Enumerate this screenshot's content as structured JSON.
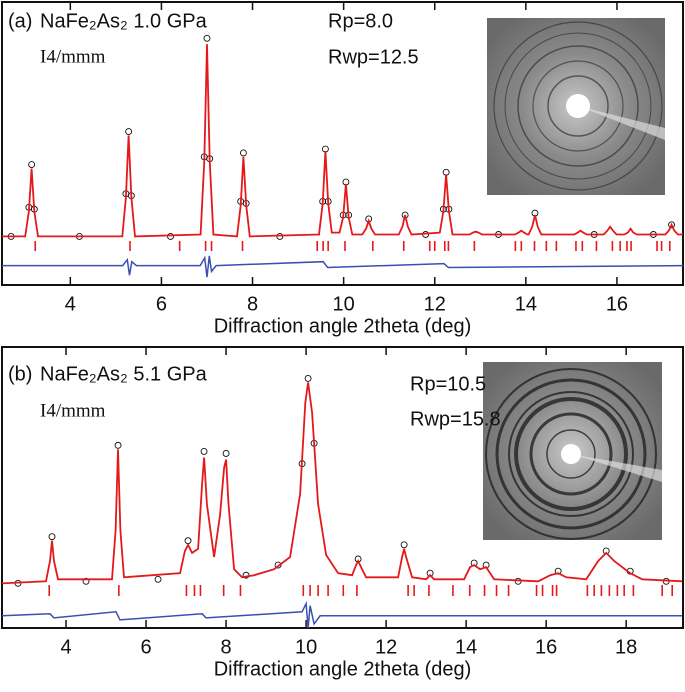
{
  "chart_data": [
    {
      "type": "line",
      "label": "(a)",
      "title": "NaFe₂As₂ 1.0 GPa",
      "space_group": "I4/mmm",
      "annotations": [
        "Rp=8.0",
        "Rwp=12.5"
      ],
      "x_label": "Diffraction angle 2theta (deg)",
      "xlim": [
        2.5,
        17.45
      ],
      "xticks": [
        4,
        6,
        8,
        10,
        12,
        14,
        16
      ],
      "ylim": [
        -24,
        115
      ],
      "calculated": {
        "color": "#e4191c",
        "x": [
          2.5,
          3.01,
          3.09,
          3.15,
          3.21,
          3.29,
          5.14,
          5.22,
          5.28,
          5.34,
          5.42,
          6.86,
          6.94,
          7.0,
          7.06,
          7.14,
          7.66,
          7.74,
          7.8,
          7.86,
          7.94,
          9.46,
          9.54,
          9.6,
          9.66,
          9.74,
          9.91,
          9.99,
          10.05,
          10.11,
          10.19,
          10.41,
          10.49,
          10.55,
          10.61,
          10.69,
          11.21,
          11.29,
          11.35,
          11.41,
          11.49,
          12.11,
          12.19,
          12.25,
          12.31,
          12.39,
          12.76,
          12.84,
          12.9,
          12.96,
          13.04,
          13.76,
          13.84,
          13.9,
          13.96,
          14.04,
          14.06,
          14.14,
          14.2,
          14.26,
          14.34,
          15.06,
          15.14,
          15.2,
          15.26,
          15.34,
          15.71,
          15.79,
          15.85,
          15.91,
          15.99,
          16.16,
          16.24,
          16.3,
          16.36,
          16.44,
          17.06,
          17.14,
          17.2,
          17.26,
          17.34,
          17.45
        ],
        "values": [
          1,
          1,
          14,
          36,
          14,
          1,
          1,
          21,
          53,
          21,
          1,
          2,
          40,
          100,
          40,
          2,
          1,
          17,
          42,
          17,
          1,
          2,
          18,
          45,
          18,
          3,
          3,
          11,
          28,
          11,
          2,
          2,
          5,
          9,
          5,
          2,
          2,
          6,
          12,
          6,
          2,
          3,
          14,
          33,
          14,
          2,
          2,
          3,
          3.5,
          3,
          2,
          2,
          3,
          4,
          3,
          2,
          2,
          6,
          12,
          6,
          2,
          2,
          3,
          4,
          3,
          2,
          2,
          4,
          6,
          4,
          2,
          2,
          3,
          5,
          3,
          2,
          2,
          4,
          7,
          4,
          2,
          2
        ]
      },
      "observed": {
        "color": "#111111",
        "x": [
          2.7,
          3.09,
          3.15,
          3.21,
          4.2,
          5.22,
          5.28,
          5.34,
          6.2,
          6.94,
          7.0,
          7.06,
          7.74,
          7.8,
          7.86,
          8.6,
          9.54,
          9.6,
          9.66,
          9.99,
          10.05,
          10.11,
          10.55,
          11.35,
          11.8,
          12.19,
          12.25,
          12.31,
          13.4,
          14.2,
          15.5,
          16.8,
          17.2
        ],
        "values": [
          1,
          16,
          38,
          15,
          1,
          23,
          55,
          22,
          1,
          42,
          103,
          41,
          19,
          44,
          18,
          1,
          19,
          46,
          19,
          12,
          29,
          12,
          10,
          12,
          2,
          15,
          34,
          15,
          2,
          13,
          2,
          2,
          7
        ]
      },
      "difference": {
        "color": "#3a4fb0",
        "x": [
          2.5,
          5.15,
          5.25,
          5.3,
          5.35,
          5.45,
          6.85,
          6.95,
          7.0,
          7.05,
          7.1,
          7.2,
          9.55,
          9.65,
          12.2,
          12.3,
          17.45
        ],
        "values": [
          -14,
          -14,
          -11,
          -19,
          -12,
          -14,
          -14,
          -10,
          -20,
          -9,
          -17,
          -14,
          -12,
          -15,
          -13,
          -15,
          -14
        ]
      },
      "reflections": {
        "color": "#e4191c",
        "x": [
          3.23,
          5.31,
          6.4,
          6.97,
          7.1,
          7.78,
          9.42,
          9.55,
          9.66,
          10.03,
          10.64,
          11.32,
          11.89,
          12.0,
          12.22,
          12.3,
          12.87,
          13.77,
          13.9,
          14.19,
          14.45,
          14.67,
          15.1,
          15.24,
          15.55,
          15.9,
          16.07,
          16.22,
          16.31,
          16.88,
          16.98,
          17.16
        ]
      }
    },
    {
      "type": "line",
      "label": "(b)",
      "title": "NaFe₂As₂ 5.1 GPa",
      "space_group": "I4/mmm",
      "annotations": [
        "Rp=10.5",
        "Rwp=15.8"
      ],
      "x_label": "Diffraction angle 2theta (deg)",
      "xlim": [
        2.4,
        19.42
      ],
      "xticks": [
        4,
        6,
        8,
        10,
        12,
        14,
        16,
        18
      ],
      "ylim": [
        -21,
        116
      ],
      "calculated": {
        "color": "#e4191c",
        "x": [
          2.4,
          3.5,
          3.6,
          3.65,
          3.7,
          3.8,
          5.15,
          5.24,
          5.3,
          5.36,
          5.45,
          6.85,
          6.97,
          7.05,
          7.15,
          7.3,
          7.4,
          7.45,
          7.52,
          7.7,
          7.85,
          7.95,
          8.0,
          8.06,
          8.2,
          8.4,
          8.7,
          9.2,
          9.6,
          9.85,
          9.98,
          10.05,
          10.15,
          10.3,
          10.5,
          10.8,
          11.15,
          11.25,
          11.3,
          11.35,
          11.5,
          12.3,
          12.4,
          12.45,
          12.5,
          12.65,
          13.0,
          13.1,
          13.2,
          13.95,
          14.1,
          14.2,
          14.35,
          14.5,
          14.7,
          15.8,
          16.1,
          16.3,
          16.5,
          17.0,
          17.3,
          17.5,
          17.7,
          18.1,
          18.4,
          19.4
        ],
        "values": [
          1,
          2,
          12,
          22,
          12,
          3,
          3,
          27,
          67,
          27,
          4,
          6,
          17,
          20,
          16,
          18,
          50,
          63,
          40,
          14,
          35,
          58,
          62,
          40,
          8,
          4,
          5,
          8,
          14,
          45,
          90,
          100,
          85,
          40,
          15,
          6,
          5,
          10,
          12,
          10,
          4,
          4,
          14,
          18,
          14,
          4,
          3,
          5,
          3,
          3,
          9,
          10,
          8,
          9,
          3,
          2,
          5,
          6,
          4,
          3,
          12,
          16,
          12,
          6,
          3,
          2
        ]
      },
      "observed": {
        "color": "#111111",
        "x": [
          2.8,
          3.65,
          4.5,
          5.3,
          6.3,
          7.05,
          7.45,
          8.0,
          8.5,
          9.3,
          9.9,
          10.05,
          10.2,
          11.3,
          12.45,
          13.1,
          14.2,
          14.5,
          15.3,
          16.3,
          17.5,
          18.1,
          19.0
        ],
        "values": [
          1,
          24,
          2,
          69,
          3,
          22,
          66,
          65,
          5,
          10,
          60,
          102,
          70,
          13,
          20,
          6,
          11,
          10,
          2,
          7,
          17,
          7,
          2
        ]
      },
      "difference": {
        "color": "#3a4fb0",
        "x": [
          2.4,
          3.6,
          3.7,
          5.25,
          5.35,
          7.4,
          7.5,
          9.9,
          10.0,
          10.05,
          10.1,
          10.2,
          10.35,
          11.3,
          19.4
        ],
        "values": [
          -15,
          -14,
          -16,
          -13,
          -17,
          -14,
          -16,
          -13,
          -9,
          -21,
          -10,
          -19,
          -15,
          -15,
          -15
        ]
      },
      "reflections": {
        "color": "#e4191c",
        "x": [
          3.58,
          5.32,
          7.01,
          7.21,
          7.36,
          7.94,
          8.36,
          9.93,
          10.1,
          10.3,
          10.55,
          10.93,
          11.27,
          12.55,
          12.7,
          13.07,
          13.67,
          14.09,
          14.46,
          14.76,
          15.06,
          15.76,
          15.91,
          16.16,
          16.26,
          17.03,
          17.2,
          17.38,
          17.58,
          17.78,
          17.95,
          18.18,
          18.9,
          19.15
        ]
      }
    }
  ]
}
